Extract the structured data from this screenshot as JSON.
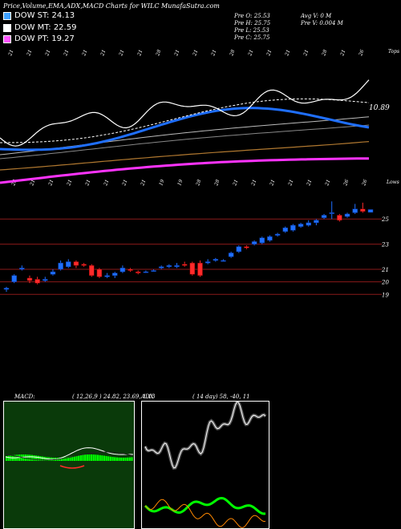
{
  "title": "Price,Volume,EMA,ADX,MACD Charts for WILC MunafaSutra.com",
  "legend": [
    {
      "label": "DOW ST: 24.13",
      "color": "#3ea0ff"
    },
    {
      "label": "DOW MT: 22.59",
      "color": "#ffffff"
    },
    {
      "label": "DOW PT: 19.27",
      "color": "#ff55ff"
    }
  ],
  "info": {
    "pre_o": "Pre   O: 25.53",
    "pre_h": "Pre   H: 25.75",
    "pre_l": "Pre   L: 25.53",
    "pre_c": "Pre   C: 25.75",
    "avg_v": "Avg V: 0  M",
    "pre_v": "Pre  V: 0.004  M"
  },
  "ema_panel": {
    "top_label": "Tops",
    "bottom_label": "Lows",
    "last_value": "10.89",
    "top_dates": [
      "21",
      "21",
      "21",
      "21",
      "21",
      "21",
      "21",
      "21",
      "28",
      "21",
      "21",
      "21",
      "28",
      "21",
      "21",
      "21",
      "21",
      "28",
      "21",
      "26"
    ],
    "bottom_dates": [
      "28",
      "21",
      "21",
      "21",
      "21",
      "21",
      "21",
      "21",
      "19",
      "19",
      "28",
      "28",
      "21",
      "21",
      "21",
      "21",
      "21",
      "21",
      "26",
      "26"
    ]
  },
  "price_panel": {
    "levels": [
      "25",
      "23",
      "21",
      "20",
      "19"
    ]
  },
  "macd": {
    "label": "MACD:",
    "values": "( 12,26,9 ) 24.82, 23.69, 1.13"
  },
  "adx": {
    "label": "ADX",
    "values": "( 14  day) 58, -40, 11"
  },
  "colors": {
    "blue": "#1f6fff",
    "red": "#ff2a2a",
    "magenta": "#ff33ff",
    "white": "#ffffff",
    "tan": "#b07830",
    "green": "#00ff00",
    "orange": "#ff8800",
    "macd_bg": "#0a4a0a"
  },
  "chart_data": {
    "type": "candlestick",
    "candles": [
      {
        "o": 19.4,
        "c": 19.5,
        "h": 19.6,
        "l": 19.2
      },
      {
        "o": 20.0,
        "c": 20.5,
        "h": 20.6,
        "l": 19.9
      },
      {
        "o": 21.0,
        "c": 21.1,
        "h": 21.3,
        "l": 20.9
      },
      {
        "o": 20.3,
        "c": 20.1,
        "h": 20.5,
        "l": 19.9
      },
      {
        "o": 20.2,
        "c": 19.9,
        "h": 20.4,
        "l": 19.8
      },
      {
        "o": 20.1,
        "c": 20.2,
        "h": 20.4,
        "l": 20.0
      },
      {
        "o": 20.6,
        "c": 20.8,
        "h": 21.0,
        "l": 20.5
      },
      {
        "o": 21.0,
        "c": 21.5,
        "h": 21.7,
        "l": 20.9
      },
      {
        "o": 21.2,
        "c": 21.6,
        "h": 21.8,
        "l": 21.1
      },
      {
        "o": 21.6,
        "c": 21.3,
        "h": 21.7,
        "l": 21.1
      },
      {
        "o": 21.4,
        "c": 21.3,
        "h": 21.5,
        "l": 21.2
      },
      {
        "o": 21.3,
        "c": 20.5,
        "h": 21.4,
        "l": 20.4
      },
      {
        "o": 21.0,
        "c": 20.4,
        "h": 21.1,
        "l": 20.3
      },
      {
        "o": 20.4,
        "c": 20.5,
        "h": 20.7,
        "l": 20.3
      },
      {
        "o": 20.5,
        "c": 20.7,
        "h": 20.8,
        "l": 20.3
      },
      {
        "o": 20.8,
        "c": 21.1,
        "h": 21.3,
        "l": 20.7
      },
      {
        "o": 21.0,
        "c": 20.9,
        "h": 21.1,
        "l": 20.8
      },
      {
        "o": 20.8,
        "c": 20.7,
        "h": 20.9,
        "l": 20.6
      },
      {
        "o": 20.8,
        "c": 20.8,
        "h": 20.9,
        "l": 20.7
      },
      {
        "o": 20.9,
        "c": 20.9,
        "h": 21.0,
        "l": 20.8
      },
      {
        "o": 21.1,
        "c": 21.2,
        "h": 21.3,
        "l": 21.0
      },
      {
        "o": 21.2,
        "c": 21.3,
        "h": 21.4,
        "l": 21.1
      },
      {
        "o": 21.2,
        "c": 21.3,
        "h": 21.5,
        "l": 21.1
      },
      {
        "o": 21.4,
        "c": 21.3,
        "h": 21.6,
        "l": 21.2
      },
      {
        "o": 21.5,
        "c": 20.6,
        "h": 21.6,
        "l": 20.5
      },
      {
        "o": 21.5,
        "c": 20.5,
        "h": 21.7,
        "l": 20.4
      },
      {
        "o": 21.5,
        "c": 21.6,
        "h": 21.8,
        "l": 21.4
      },
      {
        "o": 21.7,
        "c": 21.8,
        "h": 21.9,
        "l": 21.6
      },
      {
        "o": 21.7,
        "c": 21.7,
        "h": 21.8,
        "l": 21.6
      },
      {
        "o": 22.0,
        "c": 22.3,
        "h": 22.4,
        "l": 21.9
      },
      {
        "o": 22.4,
        "c": 22.8,
        "h": 22.9,
        "l": 22.3
      },
      {
        "o": 22.8,
        "c": 22.7,
        "h": 22.9,
        "l": 22.6
      },
      {
        "o": 23.0,
        "c": 23.2,
        "h": 23.3,
        "l": 22.9
      },
      {
        "o": 23.1,
        "c": 23.5,
        "h": 23.6,
        "l": 23.0
      },
      {
        "o": 23.3,
        "c": 23.6,
        "h": 23.7,
        "l": 23.2
      },
      {
        "o": 23.7,
        "c": 23.8,
        "h": 23.9,
        "l": 23.6
      },
      {
        "o": 24.0,
        "c": 24.3,
        "h": 24.4,
        "l": 23.9
      },
      {
        "o": 24.1,
        "c": 24.5,
        "h": 24.6,
        "l": 24.0
      },
      {
        "o": 24.4,
        "c": 24.6,
        "h": 24.7,
        "l": 24.3
      },
      {
        "o": 24.5,
        "c": 24.7,
        "h": 24.9,
        "l": 24.4
      },
      {
        "o": 24.7,
        "c": 24.9,
        "h": 25.0,
        "l": 24.5
      },
      {
        "o": 25.1,
        "c": 25.3,
        "h": 25.4,
        "l": 25.0
      },
      {
        "o": 25.5,
        "c": 25.5,
        "h": 26.4,
        "l": 25.0
      },
      {
        "o": 25.3,
        "c": 24.9,
        "h": 25.4,
        "l": 24.8
      },
      {
        "o": 25.2,
        "c": 25.4,
        "h": 25.5,
        "l": 25.1
      },
      {
        "o": 25.5,
        "c": 25.8,
        "h": 26.2,
        "l": 25.4
      },
      {
        "o": 25.8,
        "c": 25.6,
        "h": 26.3,
        "l": 25.5
      },
      {
        "o": 25.53,
        "c": 25.75,
        "h": 25.75,
        "l": 25.53
      }
    ]
  }
}
